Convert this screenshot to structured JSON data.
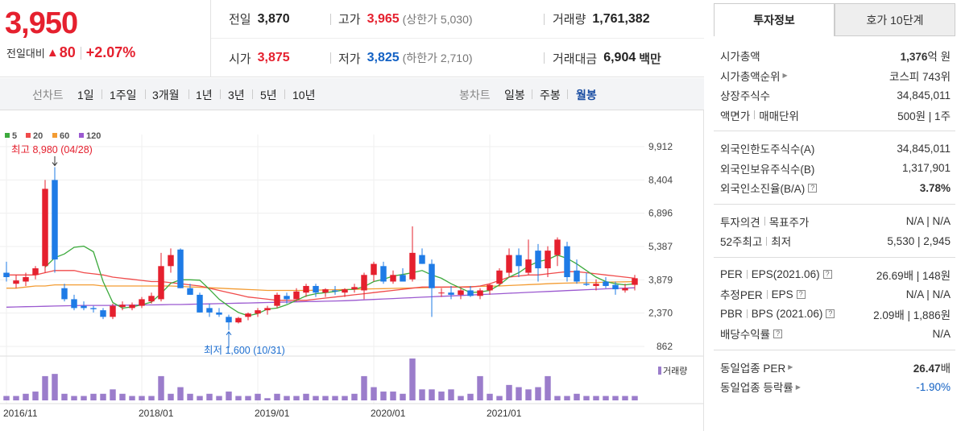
{
  "header": {
    "price": "3,950",
    "change_label": "전일대비",
    "change_value": "80",
    "change_pct": "+2.07%",
    "prev_close_label": "전일",
    "prev_close": "3,870",
    "high_label": "고가",
    "high": "3,965",
    "upper_limit_text": "(상한가 5,030)",
    "volume_label": "거래량",
    "volume": "1,761,382",
    "open_label": "시가",
    "open": "3,875",
    "low_label": "저가",
    "low": "3,825",
    "lower_limit_text": "(하한가 2,710)",
    "trade_value_label": "거래대금",
    "trade_value": "6,904",
    "trade_value_unit": "백만"
  },
  "periods": {
    "line_label": "선차트",
    "line_items": [
      "1일",
      "1주일",
      "3개월",
      "1년",
      "3년",
      "5년",
      "10년"
    ],
    "candle_label": "봉차트",
    "candle_items": [
      "일봉",
      "주봉",
      "월봉"
    ],
    "candle_active": "월봉"
  },
  "colors": {
    "up": "#e5202e",
    "down": "#1e7be6",
    "ma5": "#3daa3d",
    "ma20": "#f04a4a",
    "ma60": "#f39c33",
    "ma120": "#9b59d0",
    "volume": "#9b7dcb"
  },
  "chart_data": {
    "type": "candlestick",
    "interval": "monthly",
    "legend": [
      "5",
      "20",
      "60",
      "120"
    ],
    "y_ticks": [
      "9,912",
      "8,404",
      "6,896",
      "5,387",
      "3,879",
      "2,370",
      "862"
    ],
    "y_tick_values": [
      9912,
      8404,
      6896,
      5387,
      3879,
      2370,
      862
    ],
    "ylim": [
      862,
      9912
    ],
    "x_ticks": [
      "2016/11",
      "2018/01",
      "2019/01",
      "2020/01",
      "2021/01"
    ],
    "x_tick_index": [
      0,
      14,
      26,
      38,
      50
    ],
    "high_annotation": "최고 8,980 (04/28)",
    "high_annotation_index": 5,
    "high_value": 8980,
    "low_annotation": "최저 1,600 (10/31)",
    "low_annotation_index": 23,
    "low_value": 1600,
    "volume_label": "거래량",
    "candles": [
      {
        "o": 4200,
        "h": 4700,
        "l": 3800,
        "c": 4000
      },
      {
        "o": 3700,
        "h": 4100,
        "l": 3500,
        "c": 3850
      },
      {
        "o": 3800,
        "h": 4200,
        "l": 3600,
        "c": 4000
      },
      {
        "o": 4100,
        "h": 4500,
        "l": 3900,
        "c": 4400
      },
      {
        "o": 4500,
        "h": 8400,
        "l": 4200,
        "c": 8000
      },
      {
        "o": 8400,
        "h": 8980,
        "l": 4200,
        "c": 4800
      },
      {
        "o": 3500,
        "h": 3700,
        "l": 2900,
        "c": 3000
      },
      {
        "o": 3000,
        "h": 3200,
        "l": 2500,
        "c": 2600
      },
      {
        "o": 2700,
        "h": 2900,
        "l": 2500,
        "c": 2600
      },
      {
        "o": 2600,
        "h": 2700,
        "l": 2400,
        "c": 2550
      },
      {
        "o": 2500,
        "h": 2600,
        "l": 2100,
        "c": 2200
      },
      {
        "o": 2200,
        "h": 2800,
        "l": 2100,
        "c": 2700
      },
      {
        "o": 2650,
        "h": 2900,
        "l": 2500,
        "c": 2750
      },
      {
        "o": 2600,
        "h": 2850,
        "l": 2500,
        "c": 2750
      },
      {
        "o": 2700,
        "h": 3100,
        "l": 2600,
        "c": 3000
      },
      {
        "o": 2900,
        "h": 3300,
        "l": 2800,
        "c": 3150
      },
      {
        "o": 3000,
        "h": 5100,
        "l": 2900,
        "c": 4500
      },
      {
        "o": 4500,
        "h": 5300,
        "l": 4200,
        "c": 5000
      },
      {
        "o": 5250,
        "h": 5300,
        "l": 3500,
        "c": 3500
      },
      {
        "o": 3500,
        "h": 3700,
        "l": 3200,
        "c": 3200
      },
      {
        "o": 3200,
        "h": 3300,
        "l": 2400,
        "c": 2400
      },
      {
        "o": 2600,
        "h": 2800,
        "l": 2200,
        "c": 2400
      },
      {
        "o": 2400,
        "h": 2600,
        "l": 2200,
        "c": 2300
      },
      {
        "o": 2200,
        "h": 2300,
        "l": 1600,
        "c": 1950
      },
      {
        "o": 1950,
        "h": 2200,
        "l": 1900,
        "c": 2150
      },
      {
        "o": 2200,
        "h": 2400,
        "l": 2050,
        "c": 2350
      },
      {
        "o": 2350,
        "h": 2600,
        "l": 2200,
        "c": 2500
      },
      {
        "o": 2500,
        "h": 2700,
        "l": 2300,
        "c": 2600
      },
      {
        "o": 2700,
        "h": 3300,
        "l": 2600,
        "c": 3200
      },
      {
        "o": 3150,
        "h": 3300,
        "l": 2800,
        "c": 3000
      },
      {
        "o": 3000,
        "h": 3500,
        "l": 2900,
        "c": 3350
      },
      {
        "o": 3300,
        "h": 3700,
        "l": 3100,
        "c": 3600
      },
      {
        "o": 3600,
        "h": 3700,
        "l": 3100,
        "c": 3300
      },
      {
        "o": 3300,
        "h": 3500,
        "l": 3100,
        "c": 3450
      },
      {
        "o": 3400,
        "h": 3600,
        "l": 3200,
        "c": 3350
      },
      {
        "o": 3300,
        "h": 3500,
        "l": 3100,
        "c": 3450
      },
      {
        "o": 3450,
        "h": 3700,
        "l": 3300,
        "c": 3550
      },
      {
        "o": 3400,
        "h": 4200,
        "l": 3000,
        "c": 4100
      },
      {
        "o": 4100,
        "h": 4700,
        "l": 3800,
        "c": 4600
      },
      {
        "o": 4500,
        "h": 4700,
        "l": 3700,
        "c": 3800
      },
      {
        "o": 3800,
        "h": 4300,
        "l": 3700,
        "c": 4100
      },
      {
        "o": 4100,
        "h": 4400,
        "l": 3800,
        "c": 3800
      },
      {
        "o": 3900,
        "h": 6300,
        "l": 3800,
        "c": 5100
      },
      {
        "o": 5000,
        "h": 5300,
        "l": 4600,
        "c": 4600
      },
      {
        "o": 4600,
        "h": 4800,
        "l": 2200,
        "c": 3500
      },
      {
        "o": 3300,
        "h": 3500,
        "l": 3100,
        "c": 3300
      },
      {
        "o": 3300,
        "h": 3600,
        "l": 3000,
        "c": 3200
      },
      {
        "o": 3200,
        "h": 3500,
        "l": 3000,
        "c": 3400
      },
      {
        "o": 3400,
        "h": 3600,
        "l": 3100,
        "c": 3150
      },
      {
        "o": 3150,
        "h": 3500,
        "l": 3000,
        "c": 3400
      },
      {
        "o": 3400,
        "h": 3700,
        "l": 3200,
        "c": 3650
      },
      {
        "o": 3700,
        "h": 4400,
        "l": 3600,
        "c": 4300
      },
      {
        "o": 4200,
        "h": 5300,
        "l": 4000,
        "c": 5000
      },
      {
        "o": 5000,
        "h": 5300,
        "l": 4000,
        "c": 4500
      },
      {
        "o": 4200,
        "h": 5700,
        "l": 4100,
        "c": 4800
      },
      {
        "o": 5200,
        "h": 5500,
        "l": 3800,
        "c": 4400
      },
      {
        "o": 4400,
        "h": 5400,
        "l": 4000,
        "c": 5200
      },
      {
        "o": 5000,
        "h": 5800,
        "l": 4500,
        "c": 5700
      },
      {
        "o": 5400,
        "h": 5600,
        "l": 3800,
        "c": 4000
      },
      {
        "o": 4300,
        "h": 4800,
        "l": 3700,
        "c": 3800
      },
      {
        "o": 3700,
        "h": 4200,
        "l": 3600,
        "c": 3650
      },
      {
        "o": 3600,
        "h": 3900,
        "l": 3400,
        "c": 3700
      },
      {
        "o": 3800,
        "h": 4000,
        "l": 3500,
        "c": 3600
      },
      {
        "o": 3650,
        "h": 3800,
        "l": 3200,
        "c": 3450
      },
      {
        "o": 3400,
        "h": 3700,
        "l": 3300,
        "c": 3500
      },
      {
        "o": 3650,
        "h": 4100,
        "l": 3400,
        "c": 3950
      }
    ],
    "ma5": [
      null,
      null,
      null,
      null,
      4450,
      4880,
      5050,
      5350,
      5400,
      5150,
      3800,
      2850,
      2600,
      2650,
      2750,
      2870,
      3260,
      3720,
      3880,
      3880,
      3860,
      3450,
      3000,
      2680,
      2400,
      2250,
      2350,
      2550,
      2600,
      2750,
      2950,
      3150,
      3250,
      3300,
      3350,
      3430,
      3450,
      3570,
      3800,
      3900,
      4050,
      4120,
      4200,
      4300,
      4100,
      3950,
      3700,
      3500,
      3300,
      3330,
      3400,
      3650,
      4000,
      4200,
      4500,
      4700,
      4800,
      5000,
      4850,
      4600,
      4300,
      4000,
      3800,
      3700,
      3650,
      3700
    ],
    "ma20": [
      4100,
      4100,
      4100,
      4100,
      4200,
      4300,
      4300,
      4300,
      4200,
      4150,
      4100,
      4000,
      3950,
      3900,
      3850,
      3800,
      3800,
      3750,
      3700,
      3650,
      3600,
      3500,
      3400,
      3300,
      3200,
      3100,
      3050,
      3000,
      2950,
      2950,
      2950,
      2950,
      3000,
      3050,
      3100,
      3150,
      3200,
      3250,
      3300,
      3350,
      3400,
      3450,
      3500,
      3550,
      3550,
      3550,
      3550,
      3550,
      3550,
      3600,
      3700,
      3850,
      4000,
      4050,
      4100,
      4100,
      4150,
      4200,
      4250,
      4250,
      4200,
      4150,
      4100,
      4050,
      4000,
      3950
    ],
    "ma60": [
      3500,
      3500,
      3550,
      3600,
      3600,
      3650,
      3650,
      3650,
      3650,
      3650,
      3600,
      3600,
      3600,
      3600,
      3600,
      3600,
      3600,
      3600,
      3580,
      3560,
      3540,
      3520,
      3500,
      3480,
      3460,
      3440,
      3420,
      3400,
      3400,
      3400,
      3400,
      3400,
      3410,
      3420,
      3430,
      3440,
      3450,
      3460,
      3470,
      3480,
      3490,
      3500,
      3510,
      3520,
      3530,
      3540,
      3550,
      3560,
      3570,
      3580,
      3590,
      3600,
      3620,
      3640,
      3660,
      3680,
      3700,
      3720,
      3730,
      3740,
      3750,
      3760,
      3770,
      3780,
      3790,
      3800
    ],
    "ma120": [
      2640,
      2650,
      2660,
      2670,
      2680,
      2690,
      2700,
      2710,
      2720,
      2720,
      2720,
      2720,
      2730,
      2730,
      2740,
      2740,
      2750,
      2760,
      2760,
      2770,
      2780,
      2790,
      2800,
      2810,
      2820,
      2830,
      2840,
      2850,
      2860,
      2870,
      2880,
      2890,
      2900,
      2910,
      2920,
      2930,
      2950,
      2970,
      2990,
      3010,
      3030,
      3050,
      3070,
      3090,
      3110,
      3130,
      3150,
      3170,
      3190,
      3210,
      3230,
      3250,
      3270,
      3290,
      3310,
      3330,
      3350,
      3370,
      3390,
      3410,
      3430,
      3450,
      3470,
      3490,
      3500,
      3520
    ],
    "volume": [
      2,
      2,
      3,
      4,
      11,
      12,
      3,
      2,
      2,
      3,
      3,
      5,
      3,
      2,
      2,
      2,
      11,
      3,
      6,
      3,
      2,
      3,
      2,
      4,
      2,
      2,
      3,
      1,
      3,
      2,
      2,
      3,
      2,
      2,
      2,
      2,
      3,
      11,
      6,
      4,
      4,
      3,
      19,
      5,
      5,
      4,
      5,
      2,
      3,
      11,
      3,
      2,
      7,
      6,
      5,
      6,
      11,
      2,
      2,
      3,
      2,
      2,
      2,
      2,
      2,
      2
    ]
  },
  "right_panel": {
    "tab_invest": "투자정보",
    "tab_order": "호가 10단계",
    "rows1": [
      {
        "k": "시가총액",
        "v": "1,376",
        "unit": "억 원",
        "arrow": false
      },
      {
        "k": "시가총액순위",
        "v": "코스피 743위",
        "unit": "",
        "arrow": true
      },
      {
        "k": "상장주식수",
        "v": "34,845,011",
        "unit": "",
        "arrow": false
      },
      {
        "k1": "액면가",
        "k2": "매매단위",
        "v": "500원 | 1주"
      }
    ],
    "rows2": [
      {
        "k": "외국인한도주식수(A)",
        "v": "34,845,011"
      },
      {
        "k": "외국인보유주식수(B)",
        "v": "1,317,901"
      },
      {
        "k": "외국인소진율(B/A)",
        "v": "3.78%"
      }
    ],
    "rows3": [
      {
        "k1": "투자의견",
        "k2": "목표주가",
        "v": "N/A | N/A"
      },
      {
        "k1": "52주최고",
        "k2": "최저",
        "v": "5,530 | 2,945"
      }
    ],
    "rows4": [
      {
        "k1": "PER",
        "k2": "EPS(2021.06)",
        "v": "26.69배 | 148원"
      },
      {
        "k1": "추정PER",
        "k2": "EPS",
        "v": "N/A | N/A"
      },
      {
        "k1": "PBR",
        "k2": "BPS (2021.06)",
        "v": "2.09배 | 1,886원"
      },
      {
        "k1": "배당수익률",
        "k2": "",
        "v": "N/A"
      }
    ],
    "rows5": [
      {
        "k": "동일업종 PER",
        "v": "26.47",
        "unit": "배"
      },
      {
        "k": "동일업종 등락률",
        "v": "-1.90%",
        "unit": ""
      }
    ]
  }
}
